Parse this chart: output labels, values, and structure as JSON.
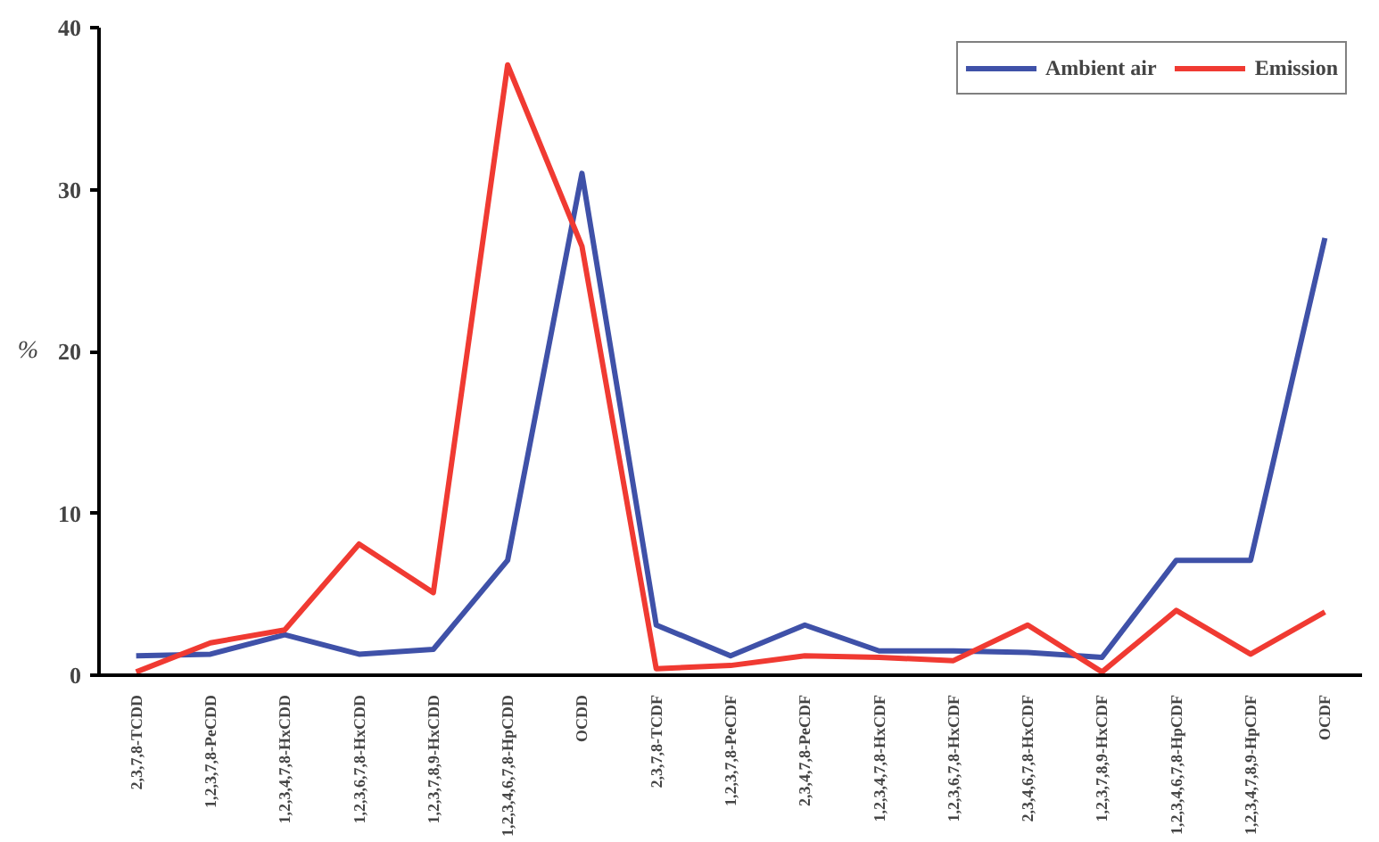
{
  "chart_data": {
    "type": "line",
    "ylabel": "%",
    "categories": [
      "2,3,7,8-TCDD",
      "1,2,3,7,8-PeCDD",
      "1,2,3,4,7,8-HxCDD",
      "1,2,3,6,7,8-HxCDD",
      "1,2,3,7,8,9-HxCDD",
      "1,2,3,4,6,7,8-HpCDD",
      "OCDD",
      "2,3,7,8-TCDF",
      "1,2,3,7,8-PeCDF",
      "2,3,4,7,8-PeCDF",
      "1,2,3,4,7,8-HxCDF",
      "1,2,3,6,7,8-HxCDF",
      "2,3,4,6,7,8-HxCDF",
      "1,2,3,7,8,9-HxCDF",
      "1,2,3,4,6,7,8-HpCDF",
      "1,2,3,4,7,8,9-HpCDF",
      "OCDF"
    ],
    "series": [
      {
        "name": "Ambient air",
        "color": "#3f51a8",
        "values": [
          1.2,
          1.3,
          2.5,
          1.3,
          1.6,
          7.1,
          31,
          3.1,
          1.2,
          3.1,
          1.5,
          1.5,
          1.4,
          1.1,
          7.1,
          7.1,
          27
        ]
      },
      {
        "name": "Emission",
        "color": "#f03a32",
        "values": [
          0.2,
          2.0,
          2.8,
          8.1,
          5.1,
          37.7,
          26.5,
          0.4,
          0.6,
          1.2,
          1.1,
          0.9,
          3.1,
          0.2,
          4.0,
          1.3,
          3.9
        ]
      }
    ],
    "ylim": [
      0,
      40
    ],
    "yticks": [
      0,
      10,
      20,
      30,
      40
    ],
    "grid": false,
    "legend": "top right",
    "marker": "none",
    "line_style": "solid"
  }
}
